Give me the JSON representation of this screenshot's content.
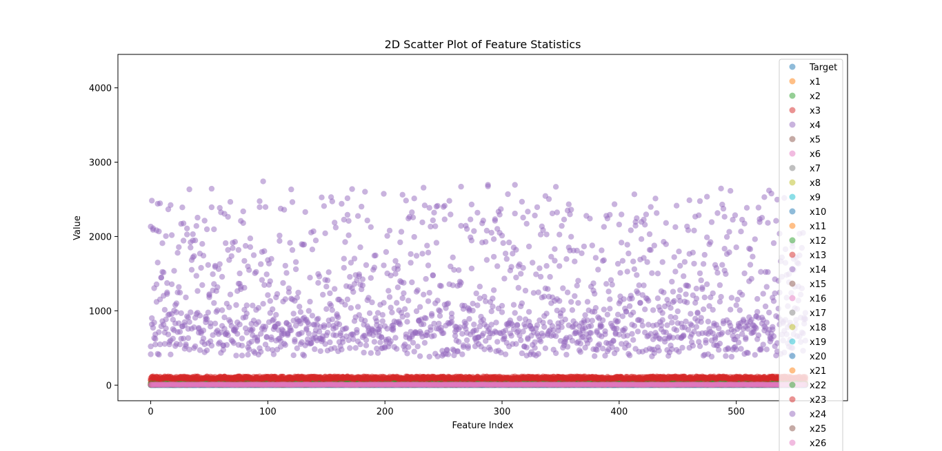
{
  "chart_data": {
    "type": "scatter",
    "title": "2D Scatter Plot of Feature Statistics",
    "xlabel": "Feature Index",
    "ylabel": "Value",
    "xlim": [
      -28,
      595
    ],
    "ylim": [
      -210,
      4450
    ],
    "xticks": [
      0,
      100,
      200,
      300,
      400,
      500
    ],
    "yticks": [
      0,
      1000,
      2000,
      3000,
      4000
    ],
    "grid": false,
    "legend_position": "top-right",
    "x_count": 560,
    "series": [
      {
        "name": "Target",
        "color": "#1f77b4",
        "level": 2,
        "spread": 3
      },
      {
        "name": "x1",
        "color": "#ff7f0e",
        "level": 12,
        "spread": 12
      },
      {
        "name": "x2",
        "color": "#2ca02c",
        "level": 20,
        "spread": 15
      },
      {
        "name": "x3",
        "color": "#d62728",
        "level": 90,
        "spread": 55
      },
      {
        "name": "x4",
        "color": "#9467bd",
        "level": 650,
        "spread": 900
      },
      {
        "name": "x5",
        "color": "#8c564b",
        "level": 6,
        "spread": 6
      },
      {
        "name": "x6",
        "color": "#e377c2",
        "level": 6,
        "spread": 6
      },
      {
        "name": "x7",
        "color": "#7f7f7f",
        "level": 4,
        "spread": 4
      },
      {
        "name": "x8",
        "color": "#bcbd22",
        "level": 4,
        "spread": 4
      },
      {
        "name": "x9",
        "color": "#17becf",
        "level": 3,
        "spread": 3
      },
      {
        "name": "x10",
        "color": "#1f77b4",
        "level": 2,
        "spread": 2
      },
      {
        "name": "x11",
        "color": "#ff7f0e",
        "level": 12,
        "spread": 12
      },
      {
        "name": "x12",
        "color": "#2ca02c",
        "level": 20,
        "spread": 15
      },
      {
        "name": "x13",
        "color": "#d62728",
        "level": 90,
        "spread": 55
      },
      {
        "name": "x14",
        "color": "#9467bd",
        "level": 650,
        "spread": 900
      },
      {
        "name": "x15",
        "color": "#8c564b",
        "level": 6,
        "spread": 6
      },
      {
        "name": "x16",
        "color": "#e377c2",
        "level": 6,
        "spread": 6
      },
      {
        "name": "x17",
        "color": "#7f7f7f",
        "level": 4,
        "spread": 4
      },
      {
        "name": "x18",
        "color": "#bcbd22",
        "level": 4,
        "spread": 4
      },
      {
        "name": "x19",
        "color": "#17becf",
        "level": 3,
        "spread": 3
      },
      {
        "name": "x20",
        "color": "#1f77b4",
        "level": 2,
        "spread": 2
      },
      {
        "name": "x21",
        "color": "#ff7f0e",
        "level": 12,
        "spread": 12
      },
      {
        "name": "x22",
        "color": "#2ca02c",
        "level": 20,
        "spread": 15
      },
      {
        "name": "x23",
        "color": "#d62728",
        "level": 90,
        "spread": 55
      },
      {
        "name": "x24",
        "color": "#9467bd",
        "level": 650,
        "spread": 900
      },
      {
        "name": "x25",
        "color": "#8c564b",
        "level": 6,
        "spread": 6
      },
      {
        "name": "x26",
        "color": "#e377c2",
        "level": 6,
        "spread": 6
      }
    ]
  }
}
